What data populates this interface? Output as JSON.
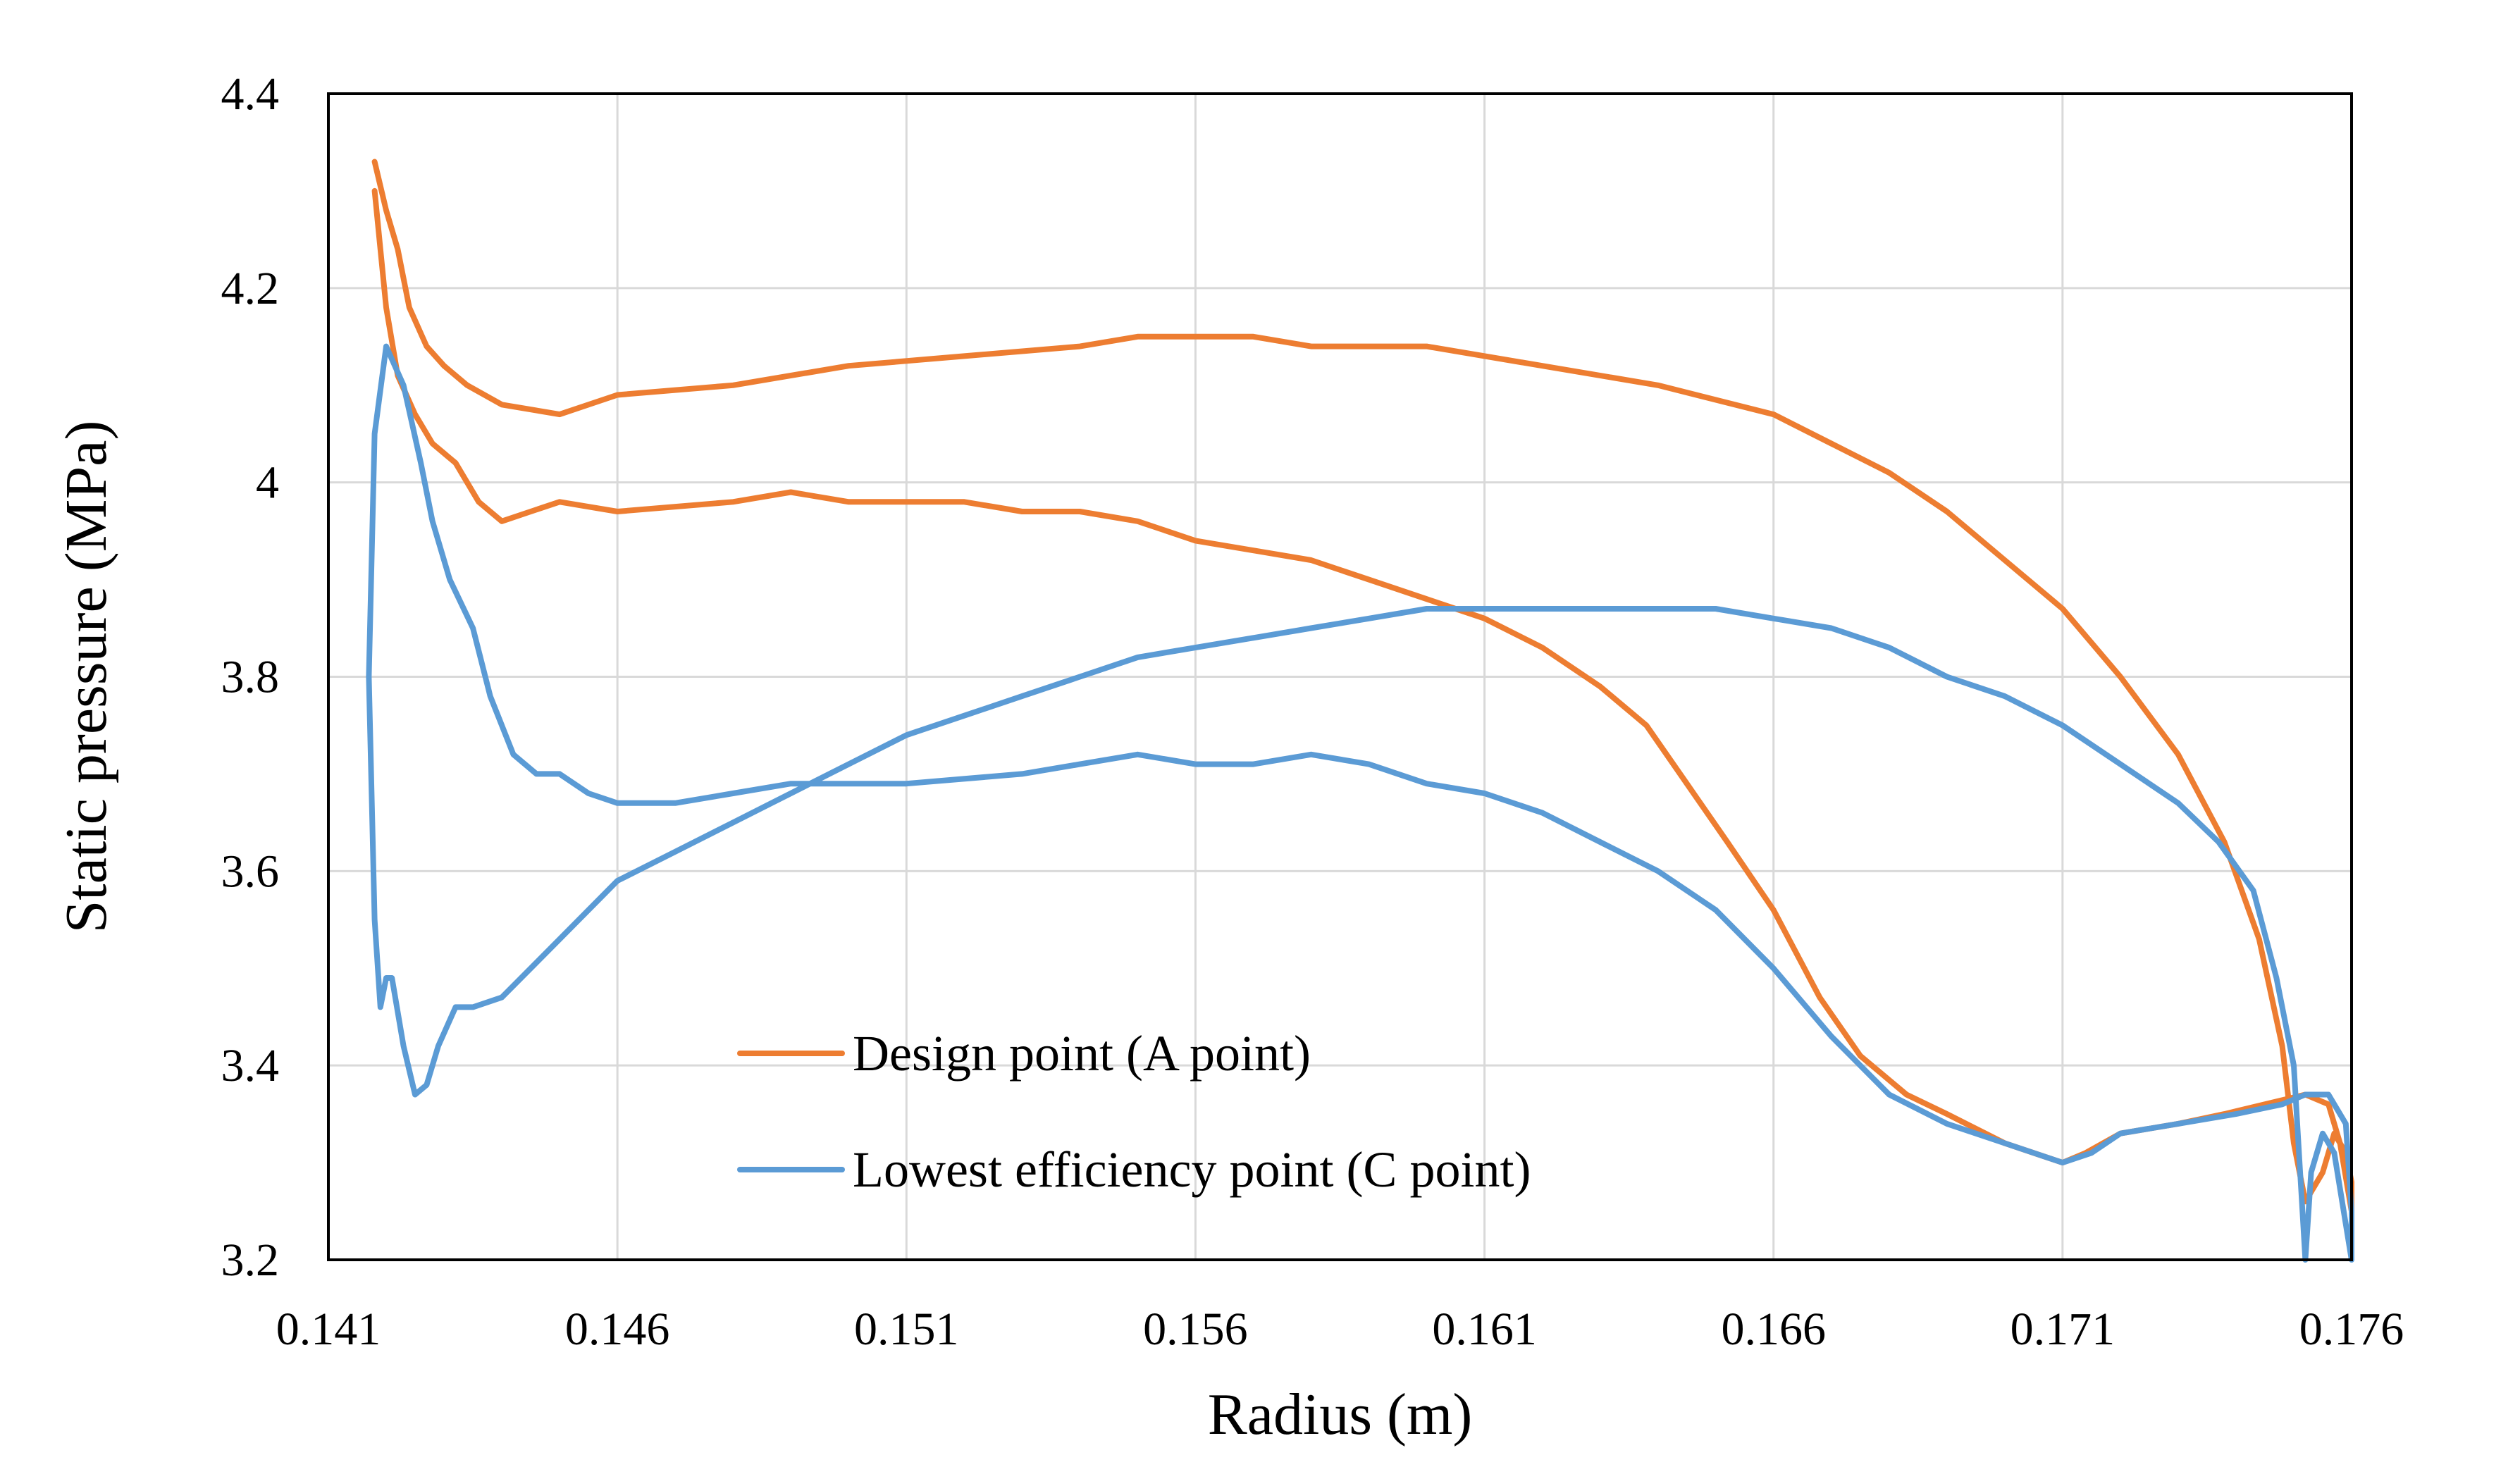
{
  "chart_data": {
    "type": "line",
    "xlabel": "Radius (m)",
    "ylabel": "Static pressure (MPa)",
    "xlim": [
      0.141,
      0.176
    ],
    "ylim": [
      3.2,
      4.4
    ],
    "xticks": [
      0.141,
      0.146,
      0.151,
      0.156,
      0.161,
      0.166,
      0.171,
      0.176
    ],
    "xtick_labels": [
      "0.141",
      "0.146",
      "0.151",
      "0.156",
      "0.161",
      "0.166",
      "0.171",
      "0.176"
    ],
    "yticks": [
      3.2,
      3.4,
      3.6,
      3.8,
      4.0,
      4.2,
      4.4
    ],
    "ytick_labels": [
      "3.2",
      "3.4",
      "3.6",
      "3.8",
      "4",
      "4.2",
      "4.4"
    ],
    "grid": true,
    "legend_position": "bottom-left",
    "series": [
      {
        "name": "Design point (A point)",
        "color": "#ED7D31",
        "points": [
          [
            0.1418,
            4.33
          ],
          [
            0.142,
            4.28
          ],
          [
            0.1422,
            4.24
          ],
          [
            0.1424,
            4.18
          ],
          [
            0.1427,
            4.14
          ],
          [
            0.143,
            4.12
          ],
          [
            0.1434,
            4.1
          ],
          [
            0.144,
            4.08
          ],
          [
            0.145,
            4.07
          ],
          [
            0.146,
            4.09
          ],
          [
            0.148,
            4.1
          ],
          [
            0.15,
            4.12
          ],
          [
            0.152,
            4.13
          ],
          [
            0.154,
            4.14
          ],
          [
            0.155,
            4.15
          ],
          [
            0.157,
            4.15
          ],
          [
            0.158,
            4.14
          ],
          [
            0.16,
            4.14
          ],
          [
            0.162,
            4.12
          ],
          [
            0.164,
            4.1
          ],
          [
            0.166,
            4.07
          ],
          [
            0.167,
            4.04
          ],
          [
            0.168,
            4.01
          ],
          [
            0.169,
            3.97
          ],
          [
            0.17,
            3.92
          ],
          [
            0.171,
            3.87
          ],
          [
            0.172,
            3.8
          ],
          [
            0.173,
            3.72
          ],
          [
            0.1738,
            3.63
          ],
          [
            0.1744,
            3.53
          ],
          [
            0.1748,
            3.42
          ],
          [
            0.175,
            3.32
          ],
          [
            0.1752,
            3.26
          ],
          [
            0.1755,
            3.29
          ],
          [
            0.1757,
            3.33
          ],
          [
            0.1759,
            3.31
          ],
          [
            0.176,
            3.28
          ],
          [
            0.176,
            3.25
          ],
          [
            0.1758,
            3.32
          ],
          [
            0.1756,
            3.36
          ],
          [
            0.1752,
            3.37
          ],
          [
            0.1745,
            3.36
          ],
          [
            0.1738,
            3.35
          ],
          [
            0.173,
            3.34
          ],
          [
            0.172,
            3.33
          ],
          [
            0.1714,
            3.31
          ],
          [
            0.171,
            3.3
          ],
          [
            0.1705,
            3.31
          ],
          [
            0.17,
            3.32
          ],
          [
            0.169,
            3.35
          ],
          [
            0.1683,
            3.37
          ],
          [
            0.1675,
            3.41
          ],
          [
            0.1668,
            3.47
          ],
          [
            0.166,
            3.56
          ],
          [
            0.1652,
            3.63
          ],
          [
            0.1645,
            3.69
          ],
          [
            0.1638,
            3.75
          ],
          [
            0.163,
            3.79
          ],
          [
            0.162,
            3.83
          ],
          [
            0.161,
            3.86
          ],
          [
            0.16,
            3.88
          ],
          [
            0.159,
            3.9
          ],
          [
            0.158,
            3.92
          ],
          [
            0.157,
            3.93
          ],
          [
            0.156,
            3.94
          ],
          [
            0.155,
            3.96
          ],
          [
            0.154,
            3.97
          ],
          [
            0.153,
            3.97
          ],
          [
            0.152,
            3.98
          ],
          [
            0.15,
            3.98
          ],
          [
            0.149,
            3.99
          ],
          [
            0.148,
            3.98
          ],
          [
            0.146,
            3.97
          ],
          [
            0.145,
            3.98
          ],
          [
            0.1445,
            3.97
          ],
          [
            0.144,
            3.96
          ],
          [
            0.1436,
            3.98
          ],
          [
            0.1432,
            4.02
          ],
          [
            0.1428,
            4.04
          ],
          [
            0.1425,
            4.07
          ],
          [
            0.1422,
            4.11
          ],
          [
            0.142,
            4.18
          ],
          [
            0.1419,
            4.24
          ],
          [
            0.1418,
            4.3
          ]
        ]
      },
      {
        "name": "Lowest efficiency point (C point)",
        "color": "#5B9BD5",
        "points": [
          [
            0.142,
            4.14
          ],
          [
            0.1423,
            4.1
          ],
          [
            0.1426,
            4.02
          ],
          [
            0.1428,
            3.96
          ],
          [
            0.1431,
            3.9
          ],
          [
            0.1435,
            3.85
          ],
          [
            0.1438,
            3.78
          ],
          [
            0.1442,
            3.72
          ],
          [
            0.1446,
            3.7
          ],
          [
            0.145,
            3.7
          ],
          [
            0.1455,
            3.68
          ],
          [
            0.146,
            3.67
          ],
          [
            0.147,
            3.67
          ],
          [
            0.148,
            3.68
          ],
          [
            0.149,
            3.69
          ],
          [
            0.151,
            3.69
          ],
          [
            0.153,
            3.7
          ],
          [
            0.154,
            3.71
          ],
          [
            0.155,
            3.72
          ],
          [
            0.156,
            3.71
          ],
          [
            0.157,
            3.71
          ],
          [
            0.158,
            3.72
          ],
          [
            0.159,
            3.71
          ],
          [
            0.16,
            3.69
          ],
          [
            0.161,
            3.68
          ],
          [
            0.162,
            3.66
          ],
          [
            0.163,
            3.63
          ],
          [
            0.164,
            3.6
          ],
          [
            0.165,
            3.56
          ],
          [
            0.166,
            3.5
          ],
          [
            0.167,
            3.43
          ],
          [
            0.168,
            3.37
          ],
          [
            0.169,
            3.34
          ],
          [
            0.17,
            3.32
          ],
          [
            0.171,
            3.3
          ],
          [
            0.1715,
            3.31
          ],
          [
            0.172,
            3.33
          ],
          [
            0.173,
            3.34
          ],
          [
            0.174,
            3.35
          ],
          [
            0.1748,
            3.36
          ],
          [
            0.1752,
            3.37
          ],
          [
            0.1756,
            3.37
          ],
          [
            0.1759,
            3.34
          ],
          [
            0.176,
            3.25
          ],
          [
            0.176,
            3.2
          ],
          [
            0.1757,
            3.31
          ],
          [
            0.1755,
            3.33
          ],
          [
            0.1753,
            3.29
          ],
          [
            0.1752,
            3.2
          ],
          [
            0.1751,
            3.3
          ],
          [
            0.175,
            3.4
          ],
          [
            0.1747,
            3.49
          ],
          [
            0.1743,
            3.58
          ],
          [
            0.1737,
            3.63
          ],
          [
            0.173,
            3.67
          ],
          [
            0.172,
            3.71
          ],
          [
            0.171,
            3.75
          ],
          [
            0.17,
            3.78
          ],
          [
            0.169,
            3.8
          ],
          [
            0.168,
            3.83
          ],
          [
            0.167,
            3.85
          ],
          [
            0.166,
            3.86
          ],
          [
            0.165,
            3.87
          ],
          [
            0.164,
            3.87
          ],
          [
            0.163,
            3.87
          ],
          [
            0.162,
            3.87
          ],
          [
            0.161,
            3.87
          ],
          [
            0.16,
            3.87
          ],
          [
            0.159,
            3.86
          ],
          [
            0.158,
            3.85
          ],
          [
            0.157,
            3.84
          ],
          [
            0.156,
            3.83
          ],
          [
            0.155,
            3.82
          ],
          [
            0.154,
            3.8
          ],
          [
            0.153,
            3.78
          ],
          [
            0.152,
            3.76
          ],
          [
            0.151,
            3.74
          ],
          [
            0.15,
            3.71
          ],
          [
            0.149,
            3.68
          ],
          [
            0.148,
            3.65
          ],
          [
            0.147,
            3.62
          ],
          [
            0.146,
            3.59
          ],
          [
            0.145,
            3.53
          ],
          [
            0.144,
            3.47
          ],
          [
            0.1435,
            3.46
          ],
          [
            0.1432,
            3.46
          ],
          [
            0.1429,
            3.42
          ],
          [
            0.1427,
            3.38
          ],
          [
            0.1425,
            3.37
          ],
          [
            0.1423,
            3.42
          ],
          [
            0.1421,
            3.49
          ],
          [
            0.142,
            3.49
          ],
          [
            0.1419,
            3.46
          ],
          [
            0.1418,
            3.55
          ],
          [
            0.1417,
            3.8
          ],
          [
            0.1418,
            4.05
          ],
          [
            0.142,
            4.14
          ]
        ]
      }
    ]
  }
}
